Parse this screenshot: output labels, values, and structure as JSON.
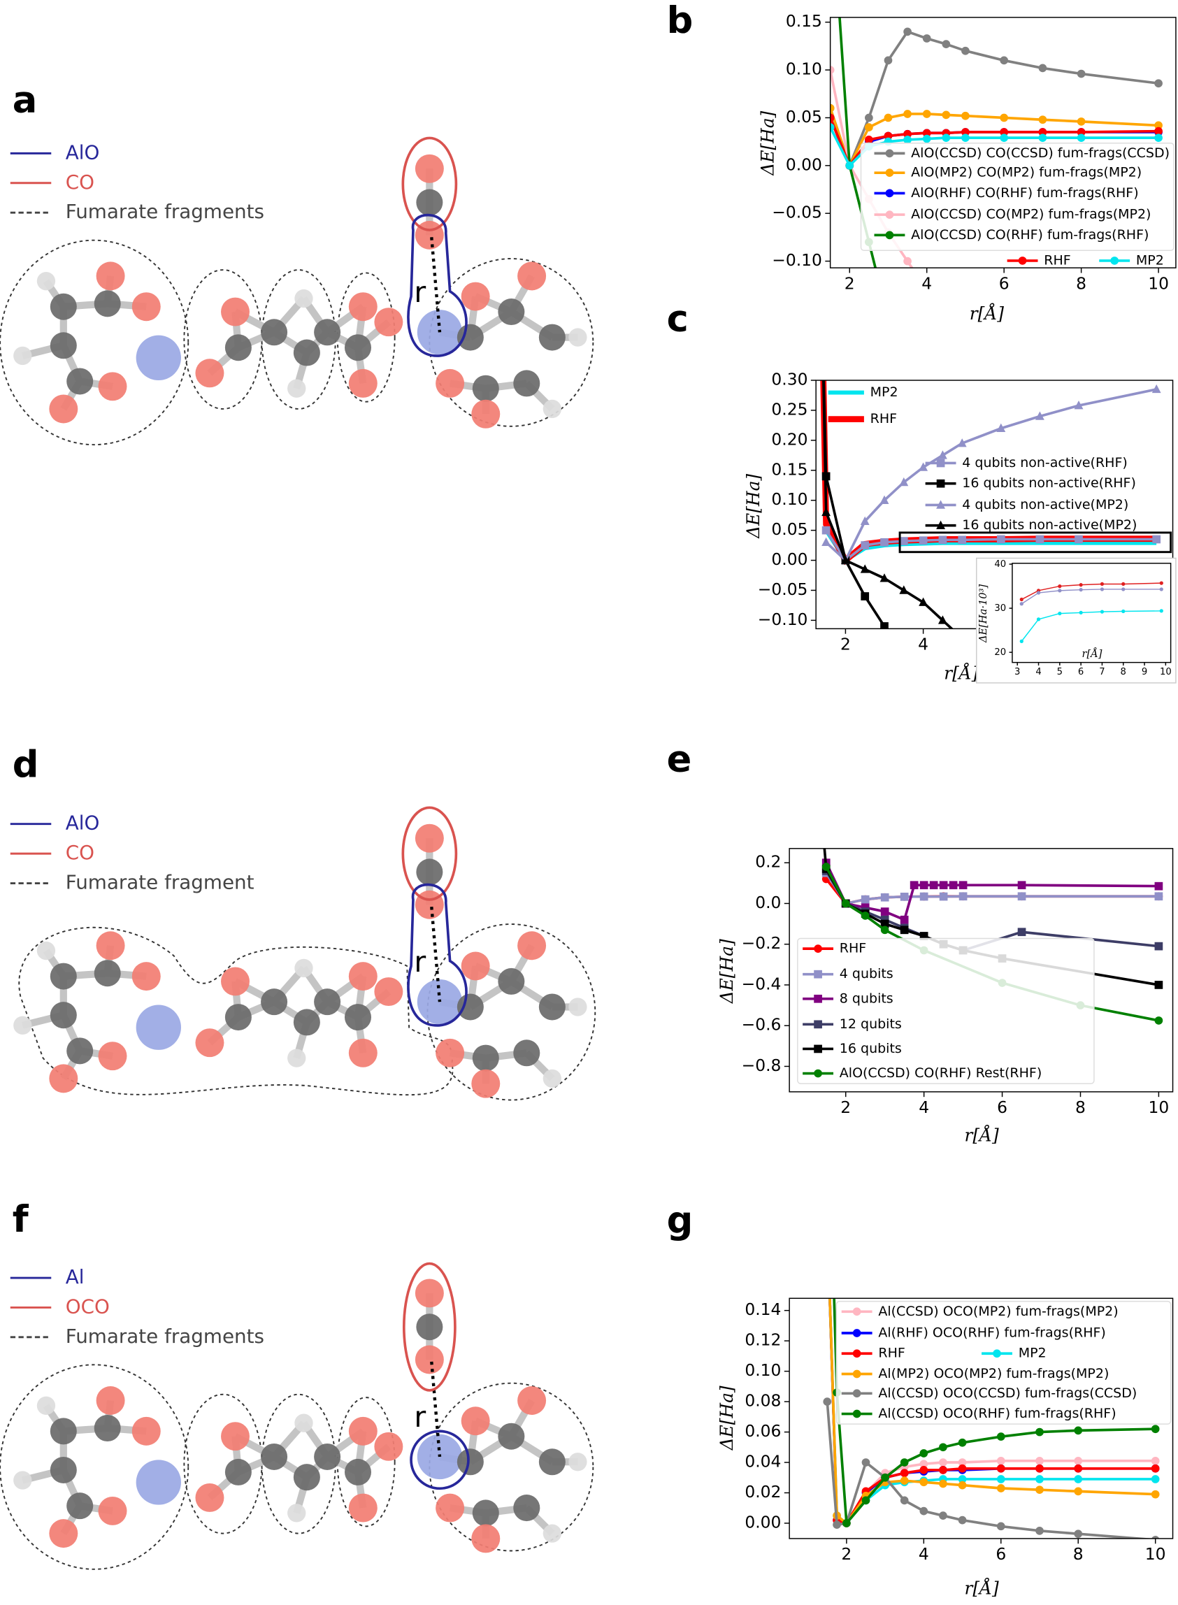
{
  "panels": [
    {
      "label": "a",
      "legend": [
        {
          "name": "AlO",
          "color": "#27279a",
          "style": "solid"
        },
        {
          "name": "CO",
          "color": "#d9534f",
          "style": "solid"
        },
        {
          "name": "Fumarate fragments",
          "color": "#444444",
          "style": "dashed"
        }
      ],
      "distance_label": "r"
    },
    {
      "label": "d",
      "legend": [
        {
          "name": "AlO",
          "color": "#27279a",
          "style": "solid"
        },
        {
          "name": "CO",
          "color": "#d9534f",
          "style": "solid"
        },
        {
          "name": "Fumarate fragment",
          "color": "#444444",
          "style": "dashed"
        }
      ],
      "distance_label": "r"
    },
    {
      "label": "f",
      "legend": [
        {
          "name": "Al",
          "color": "#27279a",
          "style": "solid"
        },
        {
          "name": "OCO",
          "color": "#d9534f",
          "style": "solid"
        },
        {
          "name": "Fumarate fragments",
          "color": "#444444",
          "style": "dashed"
        }
      ],
      "distance_label": "r"
    }
  ],
  "chart_data": [
    {
      "type": "line",
      "panel_label": "b",
      "x_label": "r[Å]",
      "y_label": "ΔE[Ha]",
      "xlim": [
        1.5,
        10.45
      ],
      "ylim": [
        -0.107,
        0.155
      ],
      "xticks": [
        2,
        4,
        6,
        8,
        10
      ],
      "yticks": [
        {
          "value": -0.1,
          "label": "−0.10"
        },
        {
          "value": -0.05,
          "label": "−0.05"
        },
        {
          "value": 0,
          "label": "0.00"
        },
        {
          "value": 0.05,
          "label": "0.05"
        },
        {
          "value": 0.1,
          "label": "0.10"
        },
        {
          "value": 0.15,
          "label": "0.15"
        }
      ],
      "x": [
        1.5,
        2,
        2.5,
        3,
        3.5,
        4,
        4.5,
        5,
        6,
        7,
        8,
        10
      ],
      "series": [
        {
          "name": "AlO(CCSD) CO(CCSD) fum-frags(CCSD)",
          "color": "#808080",
          "marker": "circle",
          "values": [
            0.06,
            0.0,
            0.05,
            0.11,
            0.14,
            0.133,
            0.127,
            0.12,
            0.11,
            0.102,
            0.096,
            0.086
          ]
        },
        {
          "name": "AlO(MP2) CO(MP2) fum-frags(MP2)",
          "color": "#ffa500",
          "marker": "circle",
          "values": [
            0.06,
            0.0,
            0.04,
            0.05,
            0.054,
            0.054,
            0.053,
            0.052,
            0.05,
            0.048,
            0.046,
            0.042
          ]
        },
        {
          "name": "AlO(RHF) CO(RHF) fum-frags(RHF)",
          "color": "#0000ff",
          "marker": "circle",
          "values": [
            0.05,
            0.0,
            0.025,
            0.031,
            0.033,
            0.034,
            0.034,
            0.035,
            0.035,
            0.035,
            0.035,
            0.035
          ]
        },
        {
          "name": "AlO(CCSD) CO(MP2) fum-frags(MP2)",
          "color": "#ffb6c1",
          "marker": "circle",
          "values": [
            0.1,
            0.0,
            -0.035,
            -0.07,
            -0.1,
            -0.13,
            null,
            null,
            null,
            null,
            null,
            null
          ]
        },
        {
          "name": "AlO(CCSD) CO(RHF) fum-frags(RHF)",
          "color": "#008000",
          "marker": "circle",
          "values": [
            0.3,
            0.0,
            -0.08,
            -0.16,
            null,
            null,
            null,
            null,
            null,
            null,
            null,
            null
          ]
        },
        {
          "name": "RHF",
          "color": "#ff0000",
          "marker": "circle",
          "values": [
            0.05,
            0.0,
            0.027,
            0.031,
            0.033,
            0.034,
            0.034,
            0.035,
            0.035,
            0.035,
            0.035,
            0.036
          ]
        },
        {
          "name": "MP2",
          "color": "#00e5ee",
          "marker": "circle",
          "values": [
            0.04,
            0.0,
            0.02,
            0.025,
            0.027,
            0.028,
            0.029,
            0.029,
            0.029,
            0.029,
            0.029,
            0.029
          ]
        }
      ]
    },
    {
      "type": "line",
      "panel_label": "c",
      "x_label": "r[Å]",
      "y_label": "ΔE[Ha]",
      "xlim": [
        1.24,
        10.42
      ],
      "ylim": [
        -0.114,
        0.3
      ],
      "xticks": [
        2,
        4
      ],
      "yticks": [
        {
          "value": -0.1,
          "label": "−0.10"
        },
        {
          "value": -0.05,
          "label": "−0.05"
        },
        {
          "value": 0,
          "label": "0.00"
        },
        {
          "value": 0.05,
          "label": "0.05"
        },
        {
          "value": 0.1,
          "label": "0.10"
        },
        {
          "value": 0.15,
          "label": "0.15"
        },
        {
          "value": 0.2,
          "label": "0.20"
        },
        {
          "value": 0.25,
          "label": "0.25"
        },
        {
          "value": 0.3,
          "label": "0.30"
        }
      ],
      "x": [
        1.4,
        1.5,
        2,
        2.5,
        3,
        3.5,
        4,
        4.5,
        5,
        6,
        7,
        8,
        10
      ],
      "series": [
        {
          "name": "MP2",
          "color": "#00e5ee",
          "marker": "none",
          "width": 4,
          "values": [
            0.4,
            0.05,
            0.0,
            0.02,
            0.025,
            0.027,
            0.028,
            0.029,
            0.029,
            0.029,
            0.029,
            0.029,
            0.029
          ]
        },
        {
          "name": "RHF",
          "color": "#ff0000",
          "marker": "none",
          "width": 6,
          "values": [
            0.4,
            0.06,
            0.0,
            0.027,
            0.031,
            0.033,
            0.034,
            0.035,
            0.035,
            0.035,
            0.036,
            0.036,
            0.036
          ]
        },
        {
          "name": "4 qubits non-active(RHF)",
          "color": "#9090c8",
          "marker": "square",
          "values": [
            null,
            0.05,
            0.0,
            0.025,
            0.03,
            0.032,
            0.033,
            0.034,
            0.034,
            0.035,
            0.035,
            0.035,
            0.035
          ]
        },
        {
          "name": "16 qubits non-active(RHF)",
          "color": "#000000",
          "marker": "square",
          "values": [
            0.4,
            0.14,
            0.0,
            -0.06,
            -0.11,
            -0.16,
            null,
            null,
            null,
            null,
            null,
            null,
            null
          ]
        },
        {
          "name": "4 qubits non-active(MP2)",
          "color": "#9090c8",
          "marker": "triangle",
          "values": [
            null,
            0.03,
            0.0,
            0.065,
            0.1,
            0.13,
            0.155,
            0.175,
            0.195,
            0.22,
            0.24,
            0.258,
            0.285
          ]
        },
        {
          "name": "16 qubits non-active(MP2)",
          "color": "#000000",
          "marker": "triangle",
          "values": [
            0.4,
            0.08,
            0.0,
            -0.015,
            -0.03,
            -0.05,
            -0.07,
            -0.1,
            -0.13,
            null,
            null,
            null,
            null
          ]
        }
      ],
      "inset": {
        "type": "line",
        "x_label": "r[Å]",
        "y_label": "ΔE[Ha·10³]",
        "xlim": [
          2.76,
          10.24
        ],
        "ylim": [
          17.7,
          40.2
        ],
        "xticks": [
          3,
          4,
          5,
          6,
          7,
          8,
          9,
          10
        ],
        "yticks": [
          20,
          30,
          40
        ],
        "x": [
          3.2,
          4,
          5,
          6,
          7,
          8,
          9.8
        ],
        "series": [
          {
            "color": "#e02020",
            "marker": "circle",
            "values": [
              32,
              34,
              35,
              35.3,
              35.5,
              35.5,
              35.7
            ]
          },
          {
            "color": "#9090c8",
            "marker": "circle",
            "values": [
              31,
              33.5,
              34,
              34.2,
              34.3,
              34.3,
              34.3
            ]
          },
          {
            "color": "#00e5ee",
            "marker": "circle",
            "values": [
              22.5,
              27.5,
              28.8,
              29,
              29.2,
              29.3,
              29.4
            ]
          }
        ]
      }
    },
    {
      "type": "line",
      "panel_label": "e",
      "x_label": "r[Å]",
      "y_label": "ΔE[Ha]",
      "xlim": [
        0.56,
        10.36
      ],
      "ylim": [
        -0.925,
        0.27
      ],
      "xticks": [
        2,
        4,
        6,
        8,
        10
      ],
      "yticks": [
        {
          "value": -0.8,
          "label": "−0.8"
        },
        {
          "value": -0.6,
          "label": "−0.6"
        },
        {
          "value": -0.4,
          "label": "−0.4"
        },
        {
          "value": -0.2,
          "label": "−0.2"
        },
        {
          "value": 0,
          "label": "0.0"
        },
        {
          "value": 0.2,
          "label": "0.2"
        }
      ],
      "series": [
        {
          "name": "RHF",
          "color": "#ff0000",
          "marker": "circle",
          "x": [
            1.5,
            2,
            2.5,
            3,
            3.5,
            4,
            4.5,
            5,
            6.5,
            10
          ],
          "values": [
            0.12,
            0.0,
            0.02,
            0.03,
            0.033,
            0.034,
            0.035,
            0.035,
            0.035,
            0.035
          ]
        },
        {
          "name": "4 qubits",
          "color": "#9090c8",
          "marker": "square",
          "x": [
            1.5,
            2,
            2.5,
            3,
            3.5,
            4,
            4.5,
            5,
            6.5,
            10
          ],
          "values": [
            0.15,
            0.0,
            0.02,
            0.03,
            0.033,
            0.034,
            0.034,
            0.035,
            0.035,
            0.035
          ]
        },
        {
          "name": "8 qubits",
          "color": "#800080",
          "marker": "square",
          "x": [
            1.5,
            2,
            2.5,
            3,
            3.5,
            3.75,
            4,
            4.25,
            4.5,
            4.75,
            5,
            6.5,
            10
          ],
          "values": [
            0.2,
            0.0,
            -0.02,
            -0.04,
            -0.08,
            0.09,
            0.09,
            0.09,
            0.09,
            0.09,
            0.09,
            0.09,
            0.085
          ]
        },
        {
          "name": "12 qubits",
          "color": "#3d3d66",
          "marker": "square",
          "x": [
            1.5,
            2,
            2.5,
            3,
            3.5,
            4,
            4.5,
            5,
            6.5,
            10
          ],
          "values": [
            0.16,
            0.0,
            -0.04,
            -0.08,
            -0.12,
            -0.16,
            -0.2,
            -0.23,
            -0.14,
            -0.21
          ]
        },
        {
          "name": "16 qubits",
          "color": "#000000",
          "marker": "square",
          "x": [
            1.4,
            1.5,
            2,
            2.5,
            3,
            3.5,
            4,
            4.5,
            5,
            6,
            10
          ],
          "values": [
            0.4,
            0.17,
            0.0,
            -0.05,
            -0.1,
            -0.13,
            -0.16,
            -0.2,
            -0.23,
            -0.27,
            -0.4
          ]
        },
        {
          "name": "AlO(CCSD) CO(RHF) Rest(RHF)",
          "color": "#008000",
          "marker": "circle",
          "x": [
            1.5,
            2,
            2.5,
            3,
            4,
            6,
            8,
            10
          ],
          "values": [
            0.18,
            0.0,
            -0.06,
            -0.13,
            -0.23,
            -0.39,
            -0.5,
            -0.575
          ]
        }
      ]
    },
    {
      "type": "line",
      "panel_label": "g",
      "x_label": "r[Å]",
      "y_label": "ΔE[Ha]",
      "xlim": [
        0.52,
        10.45
      ],
      "ylim": [
        -0.0101,
        0.148
      ],
      "xticks": [
        2,
        4,
        6,
        8,
        10
      ],
      "yticks": [
        {
          "value": 0,
          "label": "0.00"
        },
        {
          "value": 0.02,
          "label": "0.02"
        },
        {
          "value": 0.04,
          "label": "0.04"
        },
        {
          "value": 0.06,
          "label": "0.06"
        },
        {
          "value": 0.08,
          "label": "0.08"
        },
        {
          "value": 0.1,
          "label": "0.10"
        },
        {
          "value": 0.12,
          "label": "0.12"
        },
        {
          "value": 0.14,
          "label": "0.14"
        }
      ],
      "x": [
        1.5,
        1.75,
        2,
        2.5,
        3,
        3.5,
        4,
        4.5,
        5,
        6,
        7,
        8,
        10
      ],
      "series": [
        {
          "name": "Al(CCSD) OCO(MP2) fum-frags(MP2)",
          "color": "#ffb6c1",
          "marker": "circle",
          "values": [
            0.2,
            0.002,
            0.0,
            0.02,
            0.033,
            0.037,
            0.039,
            0.04,
            0.04,
            0.041,
            0.041,
            0.041,
            0.041
          ]
        },
        {
          "name": "Al(RHF) OCO(RHF) fum-frags(RHF)",
          "color": "#0000ff",
          "marker": "circle",
          "values": [
            0.2,
            0.002,
            0.0,
            0.02,
            0.03,
            0.033,
            0.034,
            0.035,
            0.035,
            0.036,
            0.036,
            0.036,
            0.036
          ]
        },
        {
          "name": "RHF",
          "color": "#ff0000",
          "marker": "circle",
          "values": [
            0.2,
            0.002,
            0.0,
            0.021,
            0.03,
            0.033,
            0.035,
            0.035,
            0.036,
            0.036,
            0.036,
            0.036,
            0.036
          ]
        },
        {
          "name": "MP2",
          "color": "#00e5ee",
          "marker": "circle",
          "values": [
            0.2,
            0.005,
            0.0,
            0.015,
            0.025,
            0.027,
            0.028,
            0.029,
            0.029,
            0.029,
            0.029,
            0.029,
            0.029
          ]
        },
        {
          "name": "Al(MP2) OCO(MP2) fum-frags(MP2)",
          "color": "#ffa500",
          "marker": "circle",
          "values": [
            0.2,
            0.005,
            0.0,
            0.018,
            0.027,
            0.028,
            0.027,
            0.026,
            0.025,
            0.023,
            0.022,
            0.021,
            0.019
          ]
        },
        {
          "name": "Al(CCSD) OCO(CCSD) fum-frags(CCSD)",
          "color": "#808080",
          "marker": "circle",
          "values": [
            0.08,
            -0.001,
            0.0,
            0.04,
            0.03,
            0.015,
            0.008,
            0.005,
            0.002,
            -0.002,
            -0.005,
            -0.007,
            -0.011
          ]
        },
        {
          "name": "Al(CCSD) OCO(RHF) fum-frags(RHF)",
          "color": "#008000",
          "marker": "circle",
          "values": [
            0.3,
            0.086,
            0.0,
            0.015,
            0.03,
            0.04,
            0.046,
            0.05,
            0.053,
            0.057,
            0.06,
            0.061,
            0.062
          ]
        }
      ]
    }
  ]
}
